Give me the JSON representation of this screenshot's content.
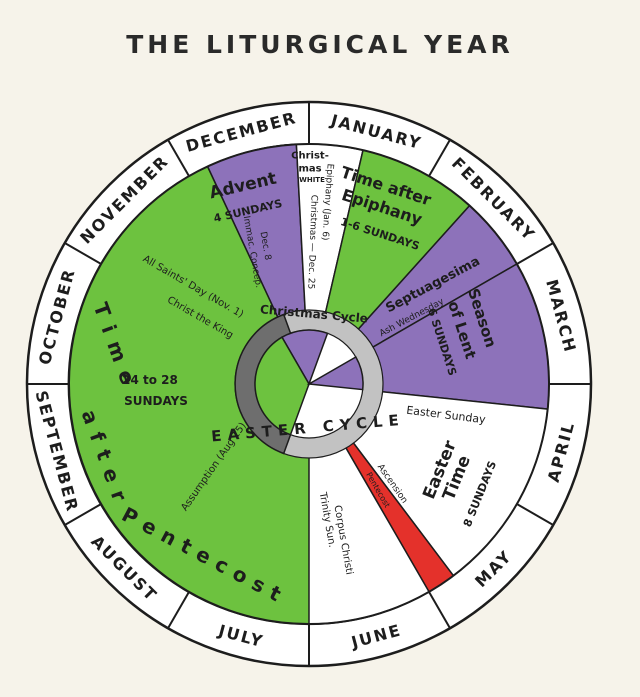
{
  "title": "THE LITURGICAL YEAR",
  "colors": {
    "green": "#6dc23f",
    "purple": "#8d72ba",
    "white": "#ffffff",
    "red": "#e4312b",
    "ring": "#ffffff",
    "ink": "#1d1d1d",
    "hub_dark": "#6e6e6e",
    "hub_light": "#c2c2c2"
  },
  "months": [
    "JANUARY",
    "FEBRUARY",
    "MARCH",
    "APRIL",
    "MAY",
    "JUNE",
    "JULY",
    "AUGUST",
    "SEPTEMBER",
    "OCTOBER",
    "NOVEMBER",
    "DECEMBER"
  ],
  "labels": {
    "advent": "Advent",
    "advent_sundays": "4 SUNDAYS",
    "immac_1": "Immac. Concep.",
    "immac_2": "Dec. 8",
    "christmas_1": "Christ-",
    "christmas_2": "mas",
    "christmas_3": "WHITE",
    "christmas_dec25": "Christmas — Dec. 25",
    "epiphany_jan6": "Epiphany (Jan. 6)",
    "time_after_1": "Time after",
    "time_after_2": "Epiphany",
    "epiphany_sundays": "1-6 SUNDAYS",
    "septuagesima": "Septuagesima",
    "ash_wednesday": "Ash Wednesday",
    "lent_1": "Season",
    "lent_2": "of Lent",
    "lent_sundays": "6 SUNDAYS",
    "easter_sunday": "Easter Sunday",
    "easter_time_1": "Easter",
    "easter_time_2": "Time",
    "easter_sundays": "8 SUNDAYS",
    "ascension": "Ascension",
    "pentecost": "Pentecost",
    "trinity_1": "Trinity Sun.",
    "trinity_2": "Corpus Christi",
    "assumption": "Assumption (Aug 15)",
    "all_saints": "All Saints' Day (Nov. 1)",
    "christ_king": "Christ the King",
    "tap_1": "24 to 28",
    "tap_2": "SUNDAYS",
    "tap_big_1": "Time",
    "tap_big_2": "after",
    "tap_big_3": "Pentecost",
    "christmas_cycle": "Christmas Cycle",
    "easter_cycle": "EASTER CYCLE"
  }
}
